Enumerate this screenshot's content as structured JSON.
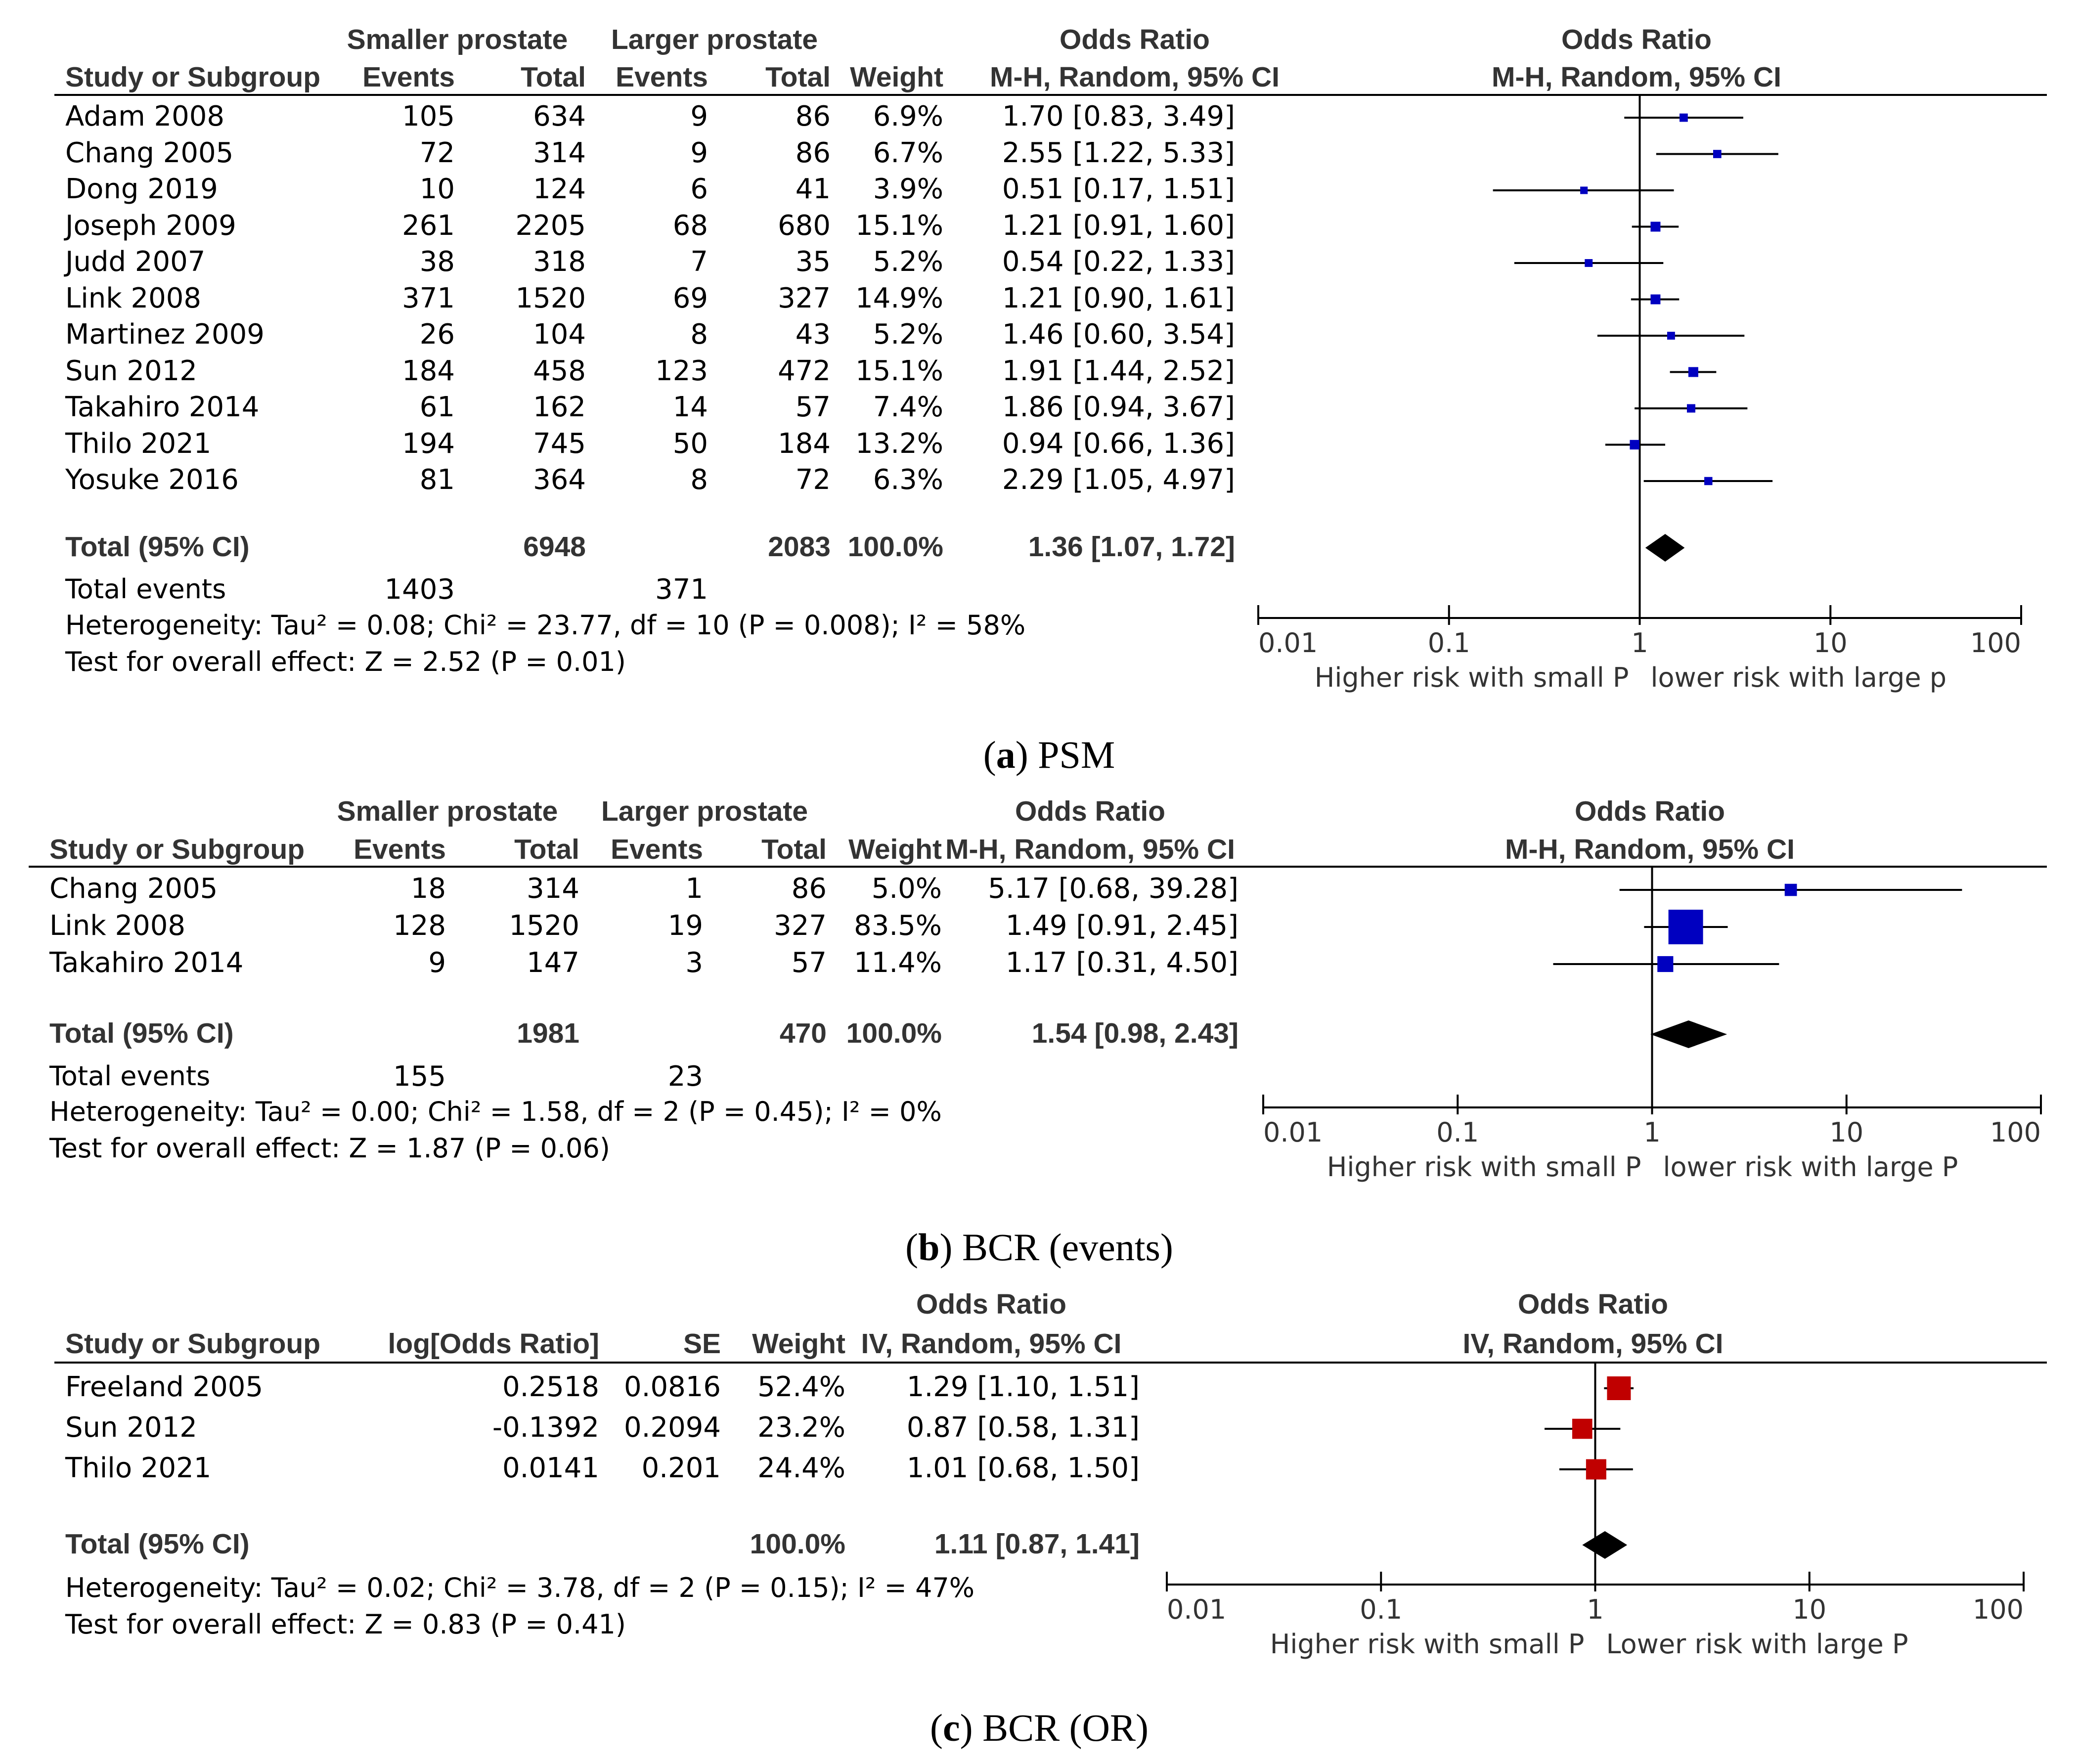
{
  "figure": {
    "panels": [
      {
        "caption_letter": "a",
        "caption_text": "PSM",
        "group_labels": {
          "smaller": "Smaller prostate",
          "larger": "Larger prostate"
        },
        "columns": {
          "study": "Study or Subgroup",
          "events1": "Events",
          "total1": "Total",
          "events2": "Events",
          "total2": "Total",
          "weight": "Weight",
          "or_title": "Odds Ratio",
          "or_method": "M-H, Random, 95% CI"
        },
        "plot_title": "Odds Ratio",
        "plot_method": "M-H, Random, 95% CI",
        "total_label": "Total (95% CI)",
        "total_events_label": "Total events",
        "heterogeneity": "Heterogeneity: Tau² = 0.08; Chi² = 23.77, df = 10 (P = 0.008); I² = 58%",
        "overall_test": "Test for overall effect: Z = 2.52 (P = 0.01)",
        "favours_left": "Higher risk with small P",
        "favours_right": "lower risk with large p"
      },
      {
        "caption_letter": "b",
        "caption_text": "BCR (events)",
        "group_labels": {
          "smaller": "Smaller prostate",
          "larger": "Larger prostate"
        },
        "columns": {
          "study": "Study or Subgroup",
          "events1": "Events",
          "total1": "Total",
          "events2": "Events",
          "total2": "Total",
          "weight": "Weight",
          "or_title": "Odds Ratio",
          "or_method": "M-H, Random, 95% CI"
        },
        "plot_title": "Odds Ratio",
        "plot_method": "M-H, Random, 95% CI",
        "total_label": "Total (95% CI)",
        "total_events_label": "Total events",
        "heterogeneity": "Heterogeneity: Tau² = 0.00; Chi² = 1.58, df = 2 (P = 0.45); I² = 0%",
        "overall_test": "Test for overall effect: Z = 1.87 (P = 0.06)",
        "favours_left": "Higher risk with small P",
        "favours_right": "lower risk with large P"
      },
      {
        "caption_letter": "c",
        "caption_text": "BCR (OR)",
        "columns": {
          "study": "Study or Subgroup",
          "logor": "log[Odds Ratio]",
          "se": "SE",
          "weight": "Weight",
          "or_title": "Odds Ratio",
          "or_method": "IV, Random, 95% CI"
        },
        "plot_title": "Odds Ratio",
        "plot_method": "IV, Random, 95% CI",
        "total_label": "Total (95% CI)",
        "heterogeneity": "Heterogeneity: Tau² = 0.02; Chi² = 3.78, df = 2 (P = 0.15); I² = 47%",
        "overall_test": "Test for overall effect: Z = 0.83 (P = 0.41)",
        "favours_left": "Higher risk with small P",
        "favours_right": "Lower risk with large P"
      }
    ]
  },
  "chart_data": [
    {
      "type": "forest",
      "title": "(a) PSM",
      "scale": "log",
      "axis_ticks": [
        "0.01",
        "0.1",
        "1",
        "10",
        "100"
      ],
      "xlim": [
        0.01,
        100
      ],
      "marker_color": "#0000c0",
      "studies": [
        {
          "study": "Adam 2008",
          "events1": "105",
          "total1": "634",
          "events2": "9",
          "total2": "86",
          "weight": "6.9%",
          "or_text": "1.70 [0.83, 3.49]",
          "or": 1.7,
          "lo": 0.83,
          "hi": 3.49,
          "w": 6.9
        },
        {
          "study": "Chang 2005",
          "events1": "72",
          "total1": "314",
          "events2": "9",
          "total2": "86",
          "weight": "6.7%",
          "or_text": "2.55 [1.22, 5.33]",
          "or": 2.55,
          "lo": 1.22,
          "hi": 5.33,
          "w": 6.7
        },
        {
          "study": "Dong 2019",
          "events1": "10",
          "total1": "124",
          "events2": "6",
          "total2": "41",
          "weight": "3.9%",
          "or_text": "0.51 [0.17, 1.51]",
          "or": 0.51,
          "lo": 0.17,
          "hi": 1.51,
          "w": 3.9
        },
        {
          "study": "Joseph 2009",
          "events1": "261",
          "total1": "2205",
          "events2": "68",
          "total2": "680",
          "weight": "15.1%",
          "or_text": "1.21 [0.91, 1.60]",
          "or": 1.21,
          "lo": 0.91,
          "hi": 1.6,
          "w": 15.1
        },
        {
          "study": "Judd 2007",
          "events1": "38",
          "total1": "318",
          "events2": "7",
          "total2": "35",
          "weight": "5.2%",
          "or_text": "0.54 [0.22, 1.33]",
          "or": 0.54,
          "lo": 0.22,
          "hi": 1.33,
          "w": 5.2
        },
        {
          "study": "Link 2008",
          "events1": "371",
          "total1": "1520",
          "events2": "69",
          "total2": "327",
          "weight": "14.9%",
          "or_text": "1.21 [0.90, 1.61]",
          "or": 1.21,
          "lo": 0.9,
          "hi": 1.61,
          "w": 14.9
        },
        {
          "study": "Martinez 2009",
          "events1": "26",
          "total1": "104",
          "events2": "8",
          "total2": "43",
          "weight": "5.2%",
          "or_text": "1.46 [0.60, 3.54]",
          "or": 1.46,
          "lo": 0.6,
          "hi": 3.54,
          "w": 5.2
        },
        {
          "study": "Sun 2012",
          "events1": "184",
          "total1": "458",
          "events2": "123",
          "total2": "472",
          "weight": "15.1%",
          "or_text": "1.91 [1.44, 2.52]",
          "or": 1.91,
          "lo": 1.44,
          "hi": 2.52,
          "w": 15.1
        },
        {
          "study": "Takahiro 2014",
          "events1": "61",
          "total1": "162",
          "events2": "14",
          "total2": "57",
          "weight": "7.4%",
          "or_text": "1.86 [0.94, 3.67]",
          "or": 1.86,
          "lo": 0.94,
          "hi": 3.67,
          "w": 7.4
        },
        {
          "study": "Thilo 2021",
          "events1": "194",
          "total1": "745",
          "events2": "50",
          "total2": "184",
          "weight": "13.2%",
          "or_text": "0.94 [0.66, 1.36]",
          "or": 0.94,
          "lo": 0.66,
          "hi": 1.36,
          "w": 13.2
        },
        {
          "study": "Yosuke 2016",
          "events1": "81",
          "total1": "364",
          "events2": "8",
          "total2": "72",
          "weight": "6.3%",
          "or_text": "2.29 [1.05, 4.97]",
          "or": 2.29,
          "lo": 1.05,
          "hi": 4.97,
          "w": 6.3
        }
      ],
      "total": {
        "total1": "6948",
        "total2": "2083",
        "weight": "100.0%",
        "or_text": "1.36 [1.07, 1.72]",
        "or": 1.36,
        "lo": 1.07,
        "hi": 1.72
      },
      "total_events": {
        "events1": "1403",
        "events2": "371"
      }
    },
    {
      "type": "forest",
      "title": "(b) BCR (events)",
      "scale": "log",
      "axis_ticks": [
        "0.01",
        "0.1",
        "1",
        "10",
        "100"
      ],
      "xlim": [
        0.01,
        100
      ],
      "marker_color": "#0000c0",
      "studies": [
        {
          "study": "Chang 2005",
          "events1": "18",
          "total1": "314",
          "events2": "1",
          "total2": "86",
          "weight": "5.0%",
          "or_text": "5.17 [0.68, 39.28]",
          "or": 5.17,
          "lo": 0.68,
          "hi": 39.28,
          "w": 5.0
        },
        {
          "study": "Link 2008",
          "events1": "128",
          "total1": "1520",
          "events2": "19",
          "total2": "327",
          "weight": "83.5%",
          "or_text": "1.49 [0.91, 2.45]",
          "or": 1.49,
          "lo": 0.91,
          "hi": 2.45,
          "w": 83.5
        },
        {
          "study": "Takahiro 2014",
          "events1": "9",
          "total1": "147",
          "events2": "3",
          "total2": "57",
          "weight": "11.4%",
          "or_text": "1.17 [0.31, 4.50]",
          "or": 1.17,
          "lo": 0.31,
          "hi": 4.5,
          "w": 11.4
        }
      ],
      "total": {
        "total1": "1981",
        "total2": "470",
        "weight": "100.0%",
        "or_text": "1.54 [0.98, 2.43]",
        "or": 1.54,
        "lo": 0.98,
        "hi": 2.43
      },
      "total_events": {
        "events1": "155",
        "events2": "23"
      }
    },
    {
      "type": "forest",
      "title": "(c) BCR (OR)",
      "scale": "log",
      "axis_ticks": [
        "0.01",
        "0.1",
        "1",
        "10",
        "100"
      ],
      "xlim": [
        0.01,
        100
      ],
      "marker_color": "#c00000",
      "studies": [
        {
          "study": "Freeland 2005",
          "logor": "0.2518",
          "se": "0.0816",
          "weight": "52.4%",
          "or_text": "1.29 [1.10, 1.51]",
          "or": 1.29,
          "lo": 1.1,
          "hi": 1.51,
          "w": 52.4
        },
        {
          "study": "Sun 2012",
          "logor": "-0.1392",
          "se": "0.2094",
          "weight": "23.2%",
          "or_text": "0.87 [0.58, 1.31]",
          "or": 0.87,
          "lo": 0.58,
          "hi": 1.31,
          "w": 23.2
        },
        {
          "study": "Thilo 2021",
          "logor": "0.0141",
          "se": "0.201",
          "weight": "24.4%",
          "or_text": "1.01 [0.68, 1.50]",
          "or": 1.01,
          "lo": 0.68,
          "hi": 1.5,
          "w": 24.4
        }
      ],
      "total": {
        "weight": "100.0%",
        "or_text": "1.11 [0.87, 1.41]",
        "or": 1.11,
        "lo": 0.87,
        "hi": 1.41
      }
    }
  ]
}
